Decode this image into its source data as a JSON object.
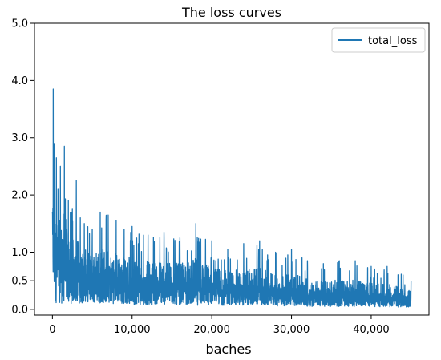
{
  "chart_data": {
    "type": "line",
    "title": "The loss curves",
    "xlabel": "baches",
    "ylabel": "",
    "xlim": [
      -2250,
      47250
    ],
    "ylim": [
      -0.1,
      5.0
    ],
    "xticks": [
      0,
      10000,
      20000,
      30000,
      40000
    ],
    "xtick_labels": [
      "0",
      "10,000",
      "20,000",
      "30,000",
      "40,000"
    ],
    "yticks": [
      0.0,
      0.5,
      1.0,
      2.0,
      3.0,
      4.0,
      5.0
    ],
    "ytick_labels": [
      "0.0",
      "0.5",
      "1.0",
      "2.0",
      "3.0",
      "4.0",
      "5.0"
    ],
    "grid": false,
    "legend": "top-right",
    "color": "#1f77b4",
    "series": [
      {
        "name": "total_loss",
        "x": [
          0,
          100,
          200,
          300,
          500,
          700,
          1000,
          1500,
          2000,
          2500,
          3000,
          3500,
          4000,
          5000,
          6000,
          7000,
          8000,
          9000,
          10000,
          12000,
          14000,
          16000,
          18000,
          20000,
          22000,
          24000,
          26000,
          28000,
          30000,
          32000,
          34000,
          36000,
          38000,
          40000,
          42000,
          44000,
          45000
        ],
        "upper": [
          1.7,
          3.85,
          2.9,
          2.5,
          2.65,
          2.1,
          2.5,
          2.85,
          1.9,
          1.75,
          2.25,
          1.6,
          1.5,
          1.4,
          1.7,
          1.65,
          1.55,
          1.4,
          1.45,
          1.3,
          1.35,
          1.25,
          1.5,
          1.2,
          1.05,
          1.15,
          1.2,
          1.0,
          1.05,
          0.85,
          0.8,
          0.85,
          0.85,
          0.75,
          0.75,
          0.6,
          0.5
        ],
        "lower": [
          0.3,
          0.25,
          0.2,
          0.15,
          0.1,
          0.15,
          0.1,
          0.1,
          0.1,
          0.1,
          0.12,
          0.1,
          0.12,
          0.12,
          0.1,
          0.1,
          0.1,
          0.1,
          0.08,
          0.08,
          0.08,
          0.08,
          0.07,
          0.07,
          0.07,
          0.07,
          0.06,
          0.06,
          0.06,
          0.05,
          0.05,
          0.05,
          0.05,
          0.05,
          0.04,
          0.04,
          0.04
        ],
        "typical": [
          1.4,
          1.3,
          1.2,
          1.1,
          1.0,
          0.95,
          0.9,
          0.85,
          0.8,
          0.75,
          0.72,
          0.7,
          0.68,
          0.65,
          0.6,
          0.58,
          0.55,
          0.52,
          0.5,
          0.47,
          0.45,
          0.42,
          0.4,
          0.38,
          0.36,
          0.34,
          0.33,
          0.3,
          0.29,
          0.27,
          0.25,
          0.24,
          0.23,
          0.22,
          0.2,
          0.19,
          0.18
        ]
      }
    ]
  }
}
